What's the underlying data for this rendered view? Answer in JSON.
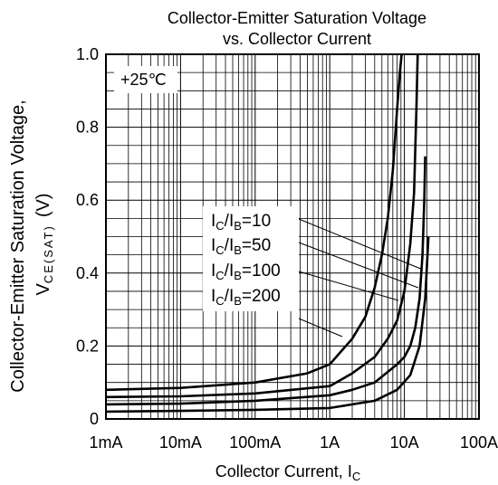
{
  "chart_data": {
    "type": "line",
    "title": [
      "Collector-Emitter Saturation Voltage",
      "vs. Collector Current"
    ],
    "xlabel": "Collector Current, I",
    "xlabel_sub": "C",
    "ylabel_line1": "Collector-Emitter Saturation Voltage,",
    "ylabel_line2_main": "V",
    "ylabel_line2_sub": "CE(SAT)",
    "ylabel_line2_unit": "(V)",
    "x_scale": "log",
    "x_unit": "A",
    "xlim": [
      0.001,
      100
    ],
    "ylim": [
      0,
      1.0
    ],
    "x_ticks": [
      0.001,
      0.01,
      0.1,
      1,
      10,
      100
    ],
    "x_tick_labels": [
      "1mA",
      "10mA",
      "100mA",
      "1A",
      "10A",
      "100A"
    ],
    "y_ticks": [
      0,
      0.2,
      0.4,
      0.6,
      0.8,
      1.0
    ],
    "y_tick_labels": [
      "0",
      "0.2",
      "0.4",
      "0.6",
      "0.8",
      "1.0"
    ],
    "grid": true,
    "annotation": "+25℃",
    "series": [
      {
        "name": "IC/IB=10",
        "label_parts": [
          "I",
          "C",
          "/I",
          "B",
          "=10"
        ],
        "x": [
          0.001,
          0.01,
          0.1,
          0.5,
          1,
          2,
          3,
          4,
          5,
          6,
          7,
          8,
          8.7,
          9.2
        ],
        "y": [
          0.08,
          0.085,
          0.1,
          0.125,
          0.15,
          0.22,
          0.28,
          0.36,
          0.45,
          0.55,
          0.68,
          0.85,
          0.95,
          1.0
        ]
      },
      {
        "name": "IC/IB=50",
        "label_parts": [
          "I",
          "C",
          "/I",
          "B",
          "=50"
        ],
        "x": [
          0.001,
          0.01,
          0.1,
          1,
          2,
          4,
          6,
          8,
          10,
          12,
          13.5,
          14.5,
          15.1
        ],
        "y": [
          0.06,
          0.062,
          0.07,
          0.09,
          0.125,
          0.17,
          0.22,
          0.27,
          0.35,
          0.48,
          0.62,
          0.85,
          1.0
        ]
      },
      {
        "name": "IC/IB=100",
        "label_parts": [
          "I",
          "C",
          "/I",
          "B",
          "=100"
        ],
        "x": [
          0.001,
          0.01,
          0.1,
          1,
          2,
          4,
          8,
          10,
          12,
          14,
          16,
          17.5,
          18.5,
          19
        ],
        "y": [
          0.04,
          0.042,
          0.05,
          0.065,
          0.08,
          0.1,
          0.15,
          0.17,
          0.2,
          0.25,
          0.33,
          0.45,
          0.6,
          0.72
        ]
      },
      {
        "name": "IC/IB=200",
        "label_parts": [
          "I",
          "C",
          "/I",
          "B",
          "=200"
        ],
        "x": [
          0.001,
          0.01,
          0.1,
          1,
          2,
          4,
          8,
          12,
          16,
          19,
          21
        ],
        "y": [
          0.02,
          0.022,
          0.025,
          0.03,
          0.04,
          0.05,
          0.08,
          0.12,
          0.2,
          0.33,
          0.5
        ]
      }
    ],
    "line_color": "#000000",
    "grid_color": "#000000"
  }
}
